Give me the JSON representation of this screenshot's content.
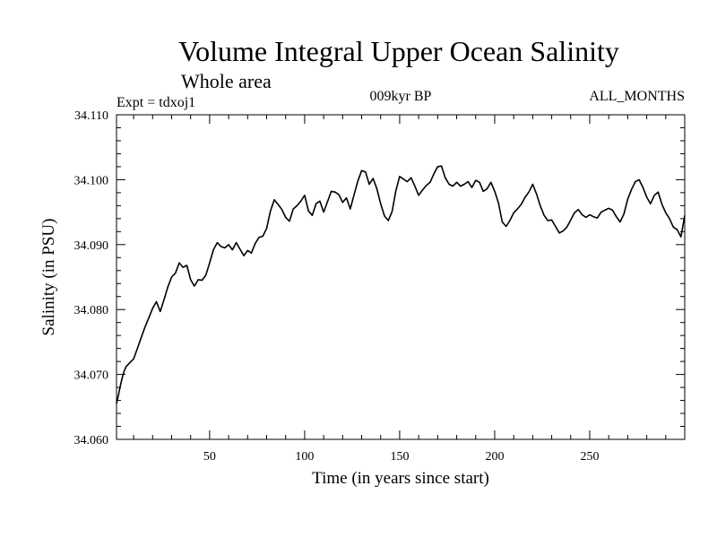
{
  "chart_data": {
    "type": "line",
    "title": "Volume Integral Upper Ocean Salinity",
    "subtitle": "Whole area",
    "expt_label": "Expt = tdxoj1",
    "period_label": "009kyr BP",
    "months_label": "ALL_MONTHS",
    "xlabel": "Time (in years since start)",
    "ylabel": "Salinity (in PSU)",
    "xlim": [
      1,
      300
    ],
    "ylim": [
      34.06,
      34.11
    ],
    "x_ticks": [
      50,
      100,
      150,
      200,
      250
    ],
    "x_tick_labels": [
      "50",
      "100",
      "150",
      "200",
      "250"
    ],
    "y_ticks": [
      34.06,
      34.07,
      34.08,
      34.09,
      34.1,
      34.11
    ],
    "y_tick_labels": [
      "34.060",
      "34.070",
      "34.080",
      "34.090",
      "34.100",
      "34.110"
    ],
    "grid": false,
    "series": [
      {
        "name": "Salinity",
        "color": "#000000",
        "x": [
          1,
          2,
          3,
          4,
          5,
          6,
          8,
          10,
          12,
          14,
          16,
          18,
          20,
          22,
          24,
          26,
          28,
          30,
          32,
          34,
          36,
          38,
          40,
          42,
          44,
          46,
          48,
          50,
          52,
          54,
          56,
          58,
          60,
          62,
          64,
          66,
          68,
          70,
          72,
          74,
          76,
          78,
          80,
          82,
          84,
          86,
          88,
          90,
          92,
          94,
          96,
          98,
          100,
          102,
          104,
          106,
          108,
          110,
          112,
          114,
          116,
          118,
          120,
          122,
          124,
          126,
          128,
          130,
          132,
          134,
          136,
          138,
          140,
          142,
          144,
          146,
          148,
          150,
          152,
          154,
          156,
          158,
          160,
          162,
          164,
          166,
          168,
          170,
          172,
          174,
          176,
          178,
          180,
          182,
          184,
          186,
          188,
          190,
          192,
          194,
          196,
          198,
          200,
          202,
          204,
          206,
          208,
          210,
          212,
          214,
          216,
          218,
          220,
          222,
          224,
          226,
          228,
          230,
          232,
          234,
          236,
          238,
          240,
          242,
          244,
          246,
          248,
          250,
          252,
          254,
          256,
          258,
          260,
          262,
          264,
          266,
          268,
          270,
          272,
          274,
          276,
          278,
          280,
          282,
          284,
          286,
          288,
          290,
          292,
          294,
          296,
          298,
          300
        ],
        "values": [
          34.0655,
          34.0668,
          34.0682,
          34.0695,
          34.0705,
          34.0712,
          34.0718,
          34.0724,
          34.074,
          34.0757,
          34.0773,
          34.0787,
          34.0802,
          34.0812,
          34.0797,
          34.0815,
          34.0835,
          34.085,
          34.0856,
          34.0872,
          34.0865,
          34.0868,
          34.0846,
          34.0836,
          34.0846,
          34.0845,
          34.0853,
          34.0872,
          34.0892,
          34.0903,
          34.0897,
          34.0895,
          34.09,
          34.0892,
          34.0903,
          34.0893,
          34.0883,
          34.0891,
          34.0887,
          34.0902,
          34.0911,
          34.0913,
          34.0925,
          34.0952,
          34.0969,
          34.0962,
          34.0954,
          34.0942,
          34.0936,
          34.0955,
          34.096,
          34.0967,
          34.0976,
          34.0952,
          34.0945,
          34.0963,
          34.0967,
          34.095,
          34.0966,
          34.0982,
          34.0981,
          34.0977,
          34.0965,
          34.0972,
          34.0955,
          34.0977,
          34.0998,
          34.1014,
          34.1012,
          34.0993,
          34.1002,
          34.0986,
          34.0963,
          34.0944,
          34.0937,
          34.0951,
          34.0983,
          34.1005,
          34.1001,
          34.0997,
          34.1003,
          34.099,
          34.0976,
          34.0984,
          34.0991,
          34.0996,
          34.1009,
          34.102,
          34.1021,
          34.1003,
          34.0993,
          34.099,
          34.0996,
          34.099,
          34.0993,
          34.0997,
          34.0988,
          34.0999,
          34.0996,
          34.0982,
          34.0986,
          34.0996,
          34.0982,
          34.0964,
          34.0935,
          34.0928,
          34.0937,
          34.0949,
          34.0955,
          34.0962,
          34.0973,
          34.0981,
          34.0993,
          34.0978,
          34.096,
          34.0945,
          34.0937,
          34.0938,
          34.0928,
          34.0918,
          34.0921,
          34.0927,
          34.0938,
          34.0949,
          34.0954,
          34.0946,
          34.0942,
          34.0946,
          34.0943,
          34.0941,
          34.095,
          34.0953,
          34.0956,
          34.0953,
          34.0943,
          34.0935,
          34.0947,
          34.097,
          34.0985,
          34.0997,
          34.1,
          34.0988,
          34.0973,
          34.0963,
          34.0976,
          34.0981,
          34.0962,
          34.0949,
          34.094,
          34.0927,
          34.0923,
          34.0912,
          34.0945
        ]
      }
    ]
  }
}
